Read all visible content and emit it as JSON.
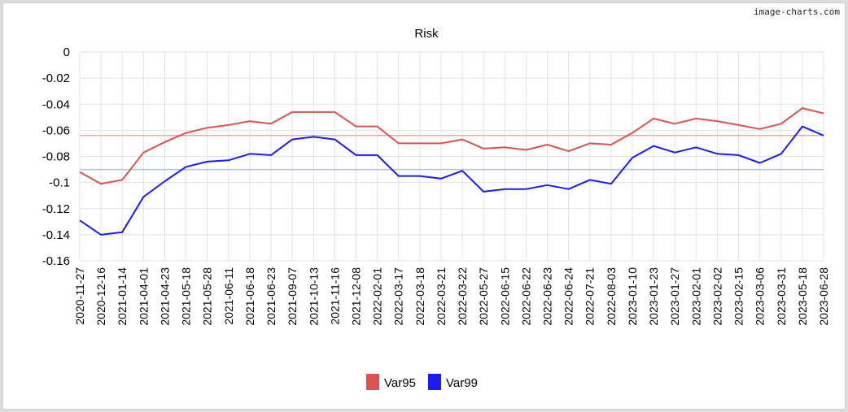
{
  "watermark": "image-charts.com",
  "chart_data": {
    "type": "line",
    "title": "Risk",
    "xlabel": "",
    "ylabel": "",
    "ylim": [
      -0.16,
      0
    ],
    "yticks": [
      0,
      -0.02,
      -0.04,
      -0.06,
      -0.08,
      -0.1,
      -0.12,
      -0.14,
      -0.16
    ],
    "ytick_labels": [
      "0",
      "-0.02",
      "-0.04",
      "-0.06",
      "-0.08",
      "-0.1",
      "-0.12",
      "-0.14",
      "-0.16"
    ],
    "grid": true,
    "legend_position": "bottom",
    "categories": [
      "2020-11-27",
      "2020-12-16",
      "2021-01-14",
      "2021-04-01",
      "2021-04-23",
      "2021-05-18",
      "2021-05-28",
      "2021-06-11",
      "2021-06-18",
      "2021-06-23",
      "2021-09-07",
      "2021-10-13",
      "2021-11-16",
      "2021-12-08",
      "2022-02-01",
      "2022-03-17",
      "2022-03-18",
      "2022-03-21",
      "2022-03-22",
      "2022-05-27",
      "2022-06-15",
      "2022-06-22",
      "2022-06-23",
      "2022-06-24",
      "2022-07-21",
      "2022-08-03",
      "2023-01-10",
      "2023-01-23",
      "2023-01-27",
      "2023-02-01",
      "2023-02-02",
      "2023-02-15",
      "2023-03-06",
      "2023-03-31",
      "2023-05-18",
      "2023-06-28"
    ],
    "series": [
      {
        "name": "Var95",
        "color": "#d9534f",
        "values": [
          -0.092,
          -0.101,
          -0.098,
          -0.077,
          -0.069,
          -0.062,
          -0.058,
          -0.056,
          -0.053,
          -0.055,
          -0.046,
          -0.046,
          -0.046,
          -0.057,
          -0.057,
          -0.07,
          -0.07,
          -0.07,
          -0.067,
          -0.074,
          -0.073,
          -0.075,
          -0.071,
          -0.076,
          -0.07,
          -0.071,
          -0.062,
          -0.051,
          -0.055,
          -0.051,
          -0.053,
          -0.056,
          -0.059,
          -0.055,
          -0.043,
          -0.047
        ]
      },
      {
        "name": "Var99",
        "color": "#1a1aff",
        "values": [
          -0.129,
          -0.14,
          -0.138,
          -0.111,
          -0.099,
          -0.088,
          -0.084,
          -0.083,
          -0.078,
          -0.079,
          -0.067,
          -0.065,
          -0.067,
          -0.079,
          -0.079,
          -0.095,
          -0.095,
          -0.097,
          -0.091,
          -0.107,
          -0.105,
          -0.105,
          -0.102,
          -0.105,
          -0.098,
          -0.101,
          -0.081,
          -0.072,
          -0.077,
          -0.073,
          -0.078,
          -0.079,
          -0.085,
          -0.078,
          -0.057,
          -0.064
        ]
      }
    ],
    "reference_lines": [
      {
        "value": -0.064,
        "color": "#f4a6a3"
      },
      {
        "value": -0.09,
        "color": "#a9c4f5"
      }
    ]
  }
}
